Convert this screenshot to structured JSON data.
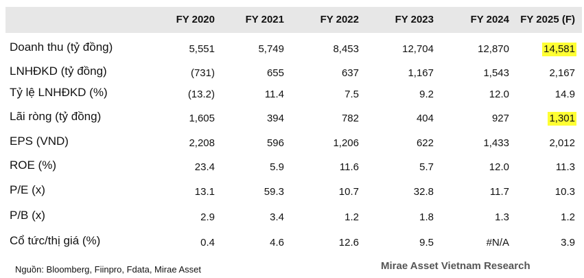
{
  "table": {
    "header": [
      "FY 2020",
      "FY 2021",
      "FY 2022",
      "FY 2023",
      "FY 2024",
      "FY 2025 (F)"
    ],
    "rows": [
      [
        "Doanh thu (tỷ đồng)",
        "5,551",
        "5,749",
        "8,453",
        "12,704",
        "12,870",
        "14,581"
      ],
      [
        "LNHĐKD (tỷ đồng)",
        "(731)",
        "655",
        "637",
        "1,167",
        "1,543",
        "2,167"
      ],
      [
        "Tỷ lệ LNHĐKD (%)",
        "(13.2)",
        "11.4",
        "7.5",
        "9.2",
        "12.0",
        "14.9"
      ],
      [
        "Lãi ròng (tỷ đồng)",
        "1,605",
        "394",
        "782",
        "404",
        "927",
        "1,301"
      ],
      [
        "EPS (VND)",
        "2,208",
        "596",
        "1,206",
        "622",
        "1,433",
        "2,012"
      ],
      [
        "ROE (%)",
        "23.4",
        "5.9",
        "11.6",
        "5.7",
        "12.0",
        "11.3"
      ],
      [
        "P/E (x)",
        "13.1",
        "59.3",
        "10.7",
        "32.8",
        "11.7",
        "10.3"
      ],
      [
        "P/B (x)",
        "2.9",
        "3.4",
        "1.2",
        "1.8",
        "1.3",
        "1.2"
      ],
      [
        "Cổ tức/thị giá (%)",
        "0.4",
        "4.6",
        "12.6",
        "9.5",
        "#N/A",
        "3.9"
      ]
    ]
  },
  "footer": {
    "source": "Nguồn: Bloomberg, Fiinpro, Fdata, Mirae Asset",
    "brand": "Mirae Asset Vietnam Research"
  }
}
